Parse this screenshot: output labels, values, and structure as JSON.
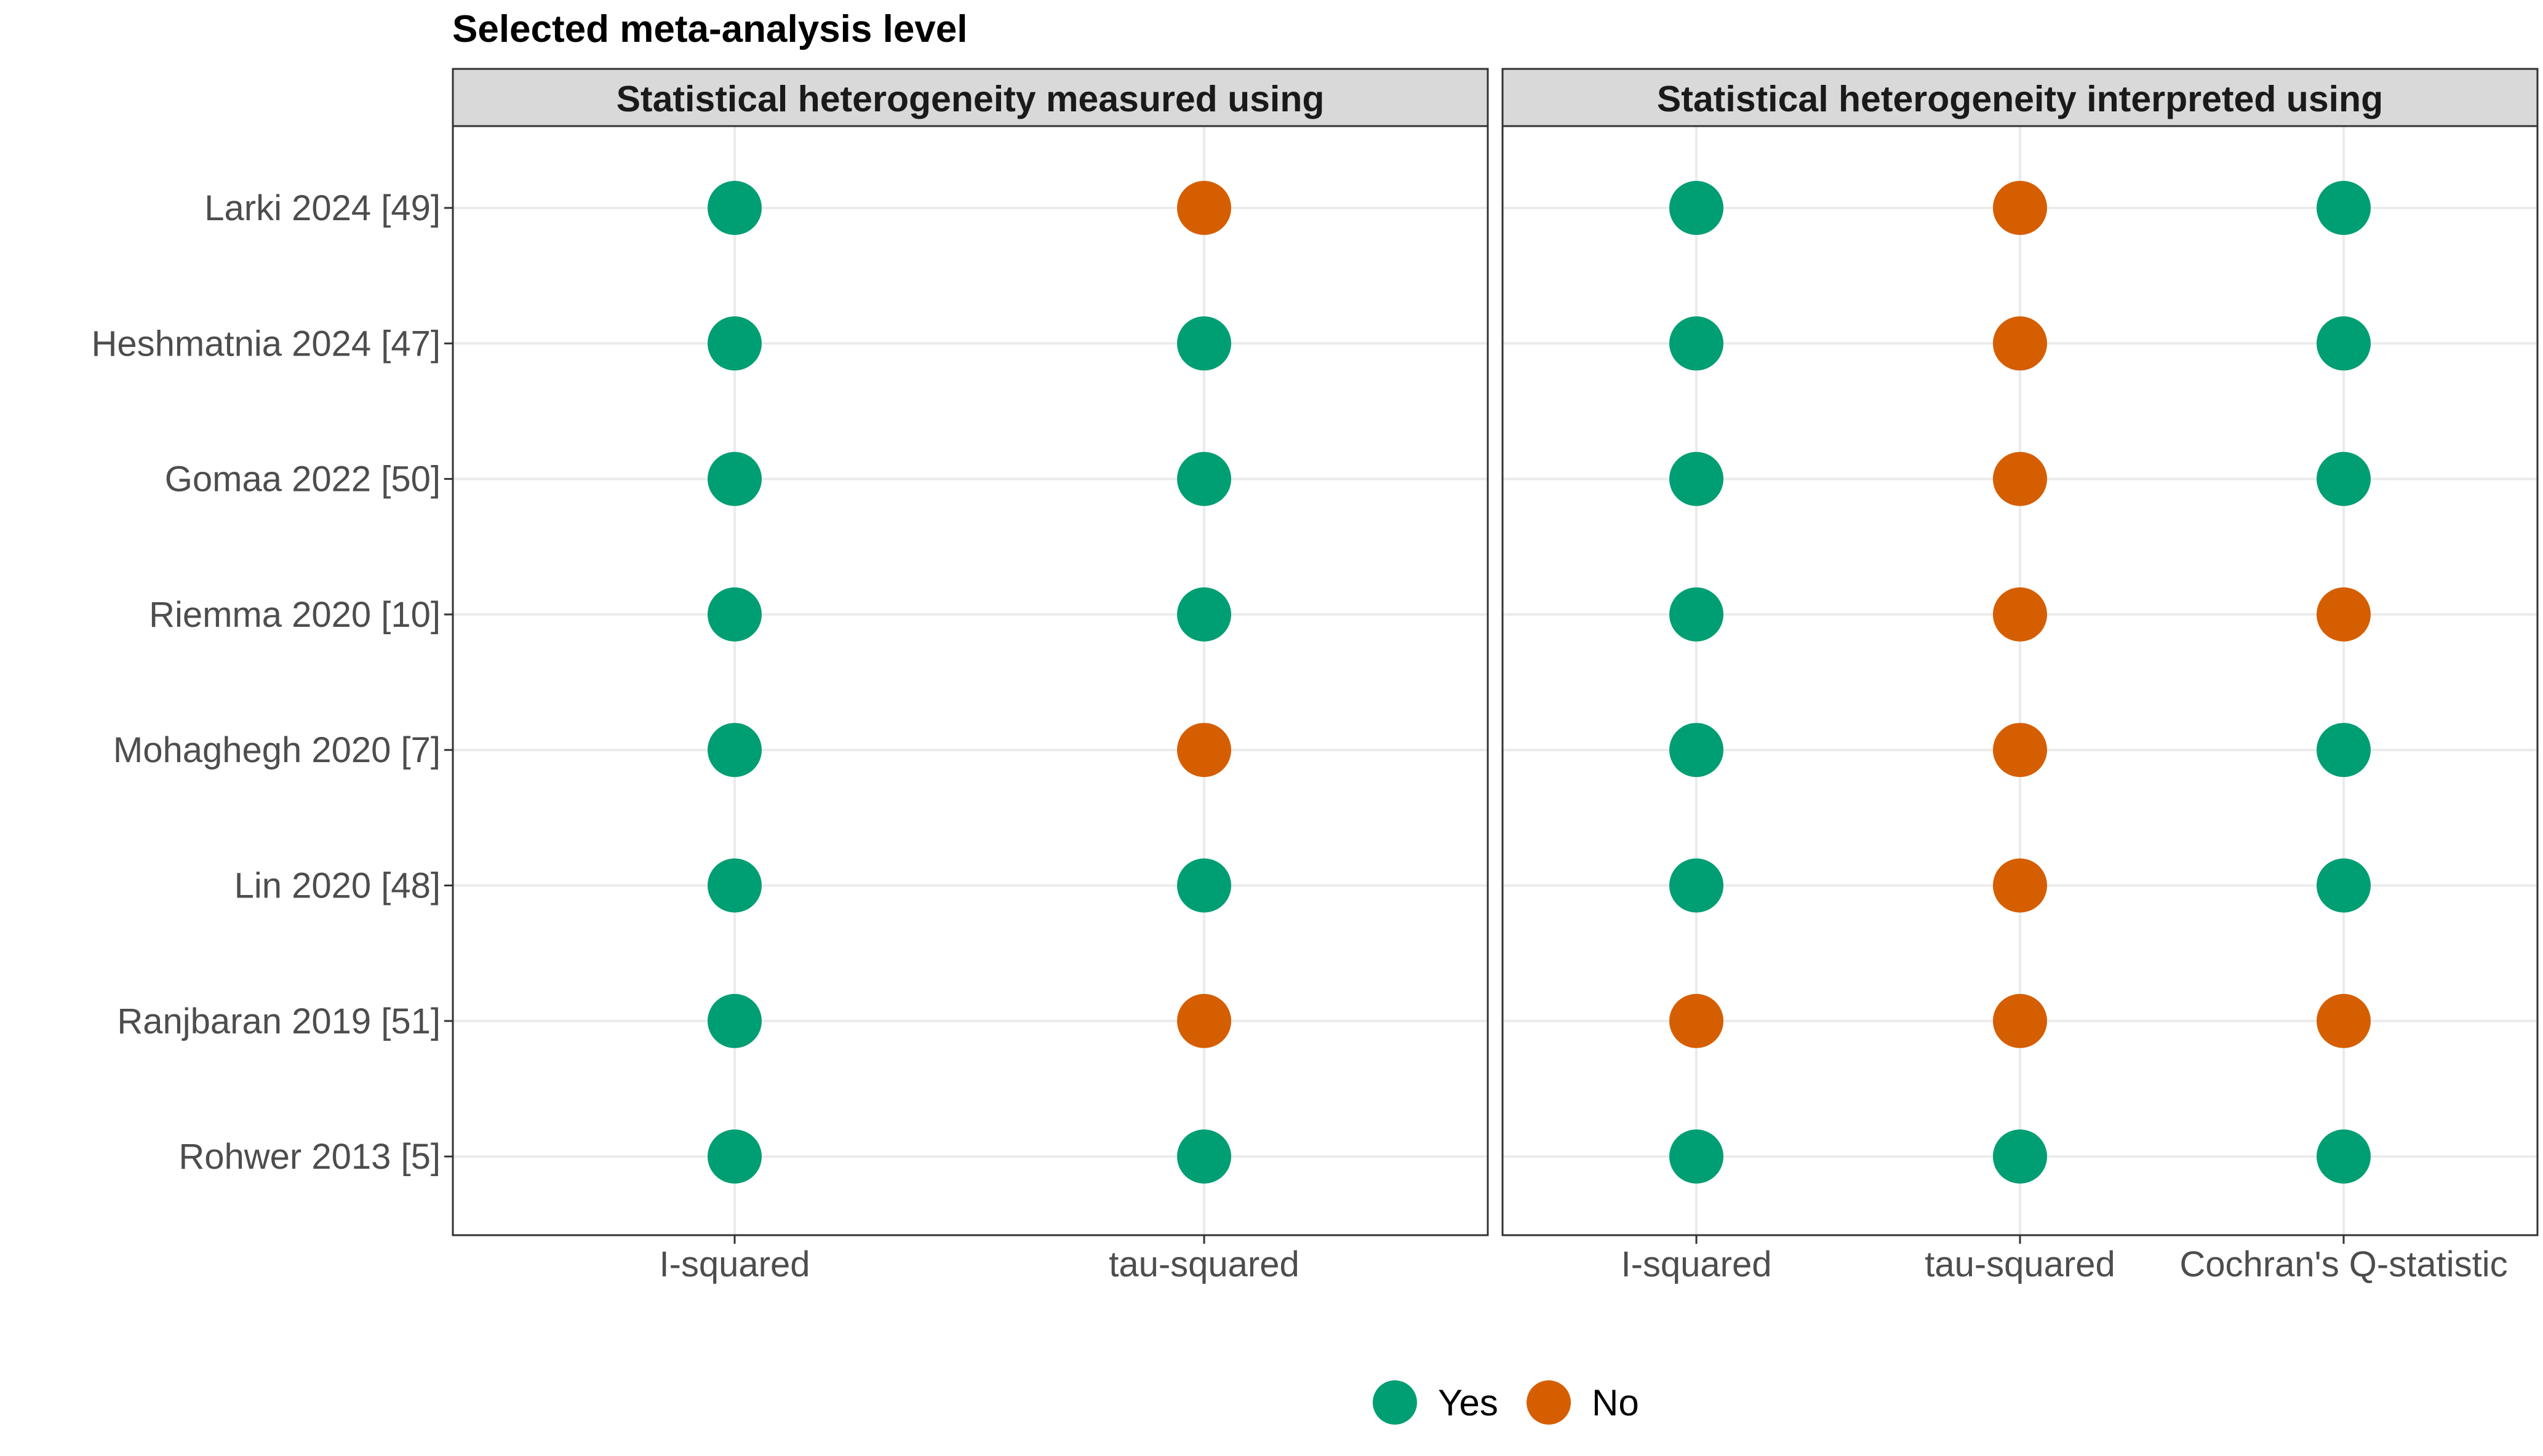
{
  "chart_data": {
    "type": "scatter",
    "title": "Selected meta-analysis level",
    "studies": [
      "Larki 2024 [49]",
      "Heshmatnia 2024 [47]",
      "Gomaa 2022 [50]",
      "Riemma 2020 [10]",
      "Mohaghegh 2020 [7]",
      "Lin 2020 [48]",
      "Ranjbaran 2019 [51]",
      "Rohwer 2013 [5]"
    ],
    "panels": [
      {
        "title": "Statistical heterogeneity measured using",
        "categories": [
          "I-squared",
          "tau-squared"
        ],
        "values": [
          [
            "Yes",
            "No"
          ],
          [
            "Yes",
            "Yes"
          ],
          [
            "Yes",
            "Yes"
          ],
          [
            "Yes",
            "Yes"
          ],
          [
            "Yes",
            "No"
          ],
          [
            "Yes",
            "Yes"
          ],
          [
            "Yes",
            "No"
          ],
          [
            "Yes",
            "Yes"
          ]
        ]
      },
      {
        "title": "Statistical heterogeneity interpreted using",
        "categories": [
          "I-squared",
          "tau-squared",
          "Cochran's Q-statistic"
        ],
        "values": [
          [
            "Yes",
            "No",
            "Yes"
          ],
          [
            "Yes",
            "No",
            "Yes"
          ],
          [
            "Yes",
            "No",
            "Yes"
          ],
          [
            "Yes",
            "No",
            "No"
          ],
          [
            "Yes",
            "No",
            "Yes"
          ],
          [
            "Yes",
            "No",
            "Yes"
          ],
          [
            "No",
            "No",
            "No"
          ],
          [
            "Yes",
            "Yes",
            "Yes"
          ]
        ]
      }
    ],
    "legend": {
      "placement": "bottom",
      "items": [
        {
          "label": "Yes",
          "color": "#009E73"
        },
        {
          "label": "No",
          "color": "#D55E00"
        }
      ]
    },
    "grid": true
  }
}
